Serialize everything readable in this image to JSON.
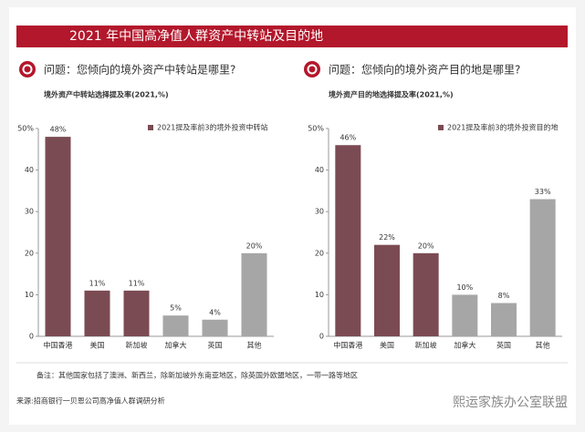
{
  "header": {
    "title": "2021 年中国高净值人群资产中转站及目的地"
  },
  "chart_data": [
    {
      "type": "bar",
      "question": "问题：您倾向的境外资产中转站是哪里?",
      "title": "境外资产中转站选择提及率(2021,%)",
      "categories": [
        "中国香港",
        "美国",
        "新加坡",
        "加拿大",
        "英国",
        "其他"
      ],
      "values": [
        48,
        11,
        11,
        5,
        4,
        20
      ],
      "value_labels": [
        "48%",
        "11%",
        "11%",
        "5%",
        "4%",
        "20%"
      ],
      "colors": [
        "#7b4b53",
        "#7b4b53",
        "#7b4b53",
        "#a6a6a6",
        "#a6a6a6",
        "#a6a6a6"
      ],
      "legend": {
        "label": "2021提及率前3的境外投资中转站",
        "color": "#7b4b53"
      },
      "ylim": [
        0,
        50
      ],
      "yticks": [
        0,
        10,
        20,
        30,
        40,
        {
          "value": 50,
          "label": "50%"
        }
      ]
    },
    {
      "type": "bar",
      "question": "问题：您倾向的境外资产目的地是哪里?",
      "title": "境外资产目的地选择提及率(2021,%)",
      "categories": [
        "中国香港",
        "美国",
        "新加坡",
        "加拿大",
        "英国",
        "其他"
      ],
      "values": [
        46,
        22,
        20,
        10,
        8,
        33
      ],
      "value_labels": [
        "46%",
        "22%",
        "20%",
        "10%",
        "8%",
        "33%"
      ],
      "colors": [
        "#7b4b53",
        "#7b4b53",
        "#7b4b53",
        "#a6a6a6",
        "#a6a6a6",
        "#a6a6a6"
      ],
      "legend": {
        "label": "2021提及率前3的境外投资目的地",
        "color": "#7b4b53"
      },
      "ylim": [
        0,
        50
      ],
      "yticks": [
        0,
        10,
        20,
        30,
        40,
        {
          "value": 50,
          "label": "50%"
        }
      ]
    }
  ],
  "note": "备注：其他国家包括了澳洲、新西兰，除新加坡外东南亚地区，除英国外欧盟地区，一带一路等地区",
  "source": "来源:招商银行一贝恩公司高净值人群调研分析",
  "watermark": "熙运家族办公室联盟"
}
